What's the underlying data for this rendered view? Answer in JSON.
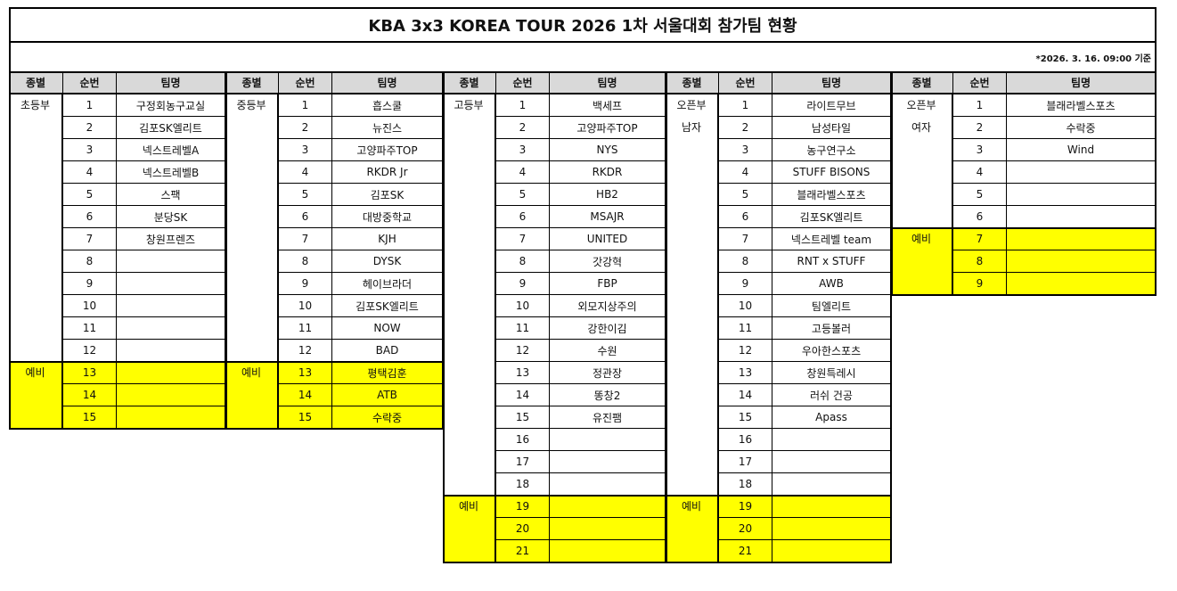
{
  "title": "KBA 3x3 KOREA TOUR 2026 1차 서울대회 참가팀 현황",
  "as_of": "*2026. 3. 16. 09:00 기준",
  "headers": {
    "division": "종별",
    "number": "순번",
    "team": "팀명"
  },
  "reserve_color": "#ffff00",
  "header_color": "#d9d9d9",
  "groups": [
    {
      "division": [
        "초등부"
      ],
      "reserve_label": "예비",
      "teams": [
        {
          "no": "1",
          "team": "구정회농구교실"
        },
        {
          "no": "2",
          "team": "김포SK엘리트"
        },
        {
          "no": "3",
          "team": "넥스트레벨A"
        },
        {
          "no": "4",
          "team": "넥스트레벨B"
        },
        {
          "no": "5",
          "team": "스팩"
        },
        {
          "no": "6",
          "team": "분당SK"
        },
        {
          "no": "7",
          "team": "창원프렌즈"
        },
        {
          "no": "8",
          "team": ""
        },
        {
          "no": "9",
          "team": ""
        },
        {
          "no": "10",
          "team": ""
        },
        {
          "no": "11",
          "team": ""
        },
        {
          "no": "12",
          "team": ""
        }
      ],
      "reserves": [
        {
          "no": "13",
          "team": ""
        },
        {
          "no": "14",
          "team": ""
        },
        {
          "no": "15",
          "team": ""
        }
      ]
    },
    {
      "division": [
        "중등부"
      ],
      "reserve_label": "예비",
      "teams": [
        {
          "no": "1",
          "team": "흡스쿨"
        },
        {
          "no": "2",
          "team": "뉴진스"
        },
        {
          "no": "3",
          "team": "고양파주TOP"
        },
        {
          "no": "4",
          "team": "RKDR Jr"
        },
        {
          "no": "5",
          "team": "김포SK"
        },
        {
          "no": "6",
          "team": "대방중학교"
        },
        {
          "no": "7",
          "team": "KJH"
        },
        {
          "no": "8",
          "team": "DYSK"
        },
        {
          "no": "9",
          "team": "헤이브라더"
        },
        {
          "no": "10",
          "team": "김포SK엘리트"
        },
        {
          "no": "11",
          "team": "NOW"
        },
        {
          "no": "12",
          "team": "BAD"
        }
      ],
      "reserves": [
        {
          "no": "13",
          "team": "평택김훈"
        },
        {
          "no": "14",
          "team": "ATB"
        },
        {
          "no": "15",
          "team": "수락중"
        }
      ]
    },
    {
      "division": [
        "고등부"
      ],
      "reserve_label": "예비",
      "teams": [
        {
          "no": "1",
          "team": "백세프"
        },
        {
          "no": "2",
          "team": "고양파주TOP"
        },
        {
          "no": "3",
          "team": "NYS"
        },
        {
          "no": "4",
          "team": "RKDR"
        },
        {
          "no": "5",
          "team": "HB2"
        },
        {
          "no": "6",
          "team": "MSAJR"
        },
        {
          "no": "7",
          "team": "UNITED"
        },
        {
          "no": "8",
          "team": "갓강혁"
        },
        {
          "no": "9",
          "team": "FBP"
        },
        {
          "no": "10",
          "team": "외모지상주의"
        },
        {
          "no": "11",
          "team": "강한이김"
        },
        {
          "no": "12",
          "team": "수원"
        },
        {
          "no": "13",
          "team": "정관장"
        },
        {
          "no": "14",
          "team": "똥창2"
        },
        {
          "no": "15",
          "team": "유진팸"
        },
        {
          "no": "16",
          "team": ""
        },
        {
          "no": "17",
          "team": ""
        },
        {
          "no": "18",
          "team": ""
        }
      ],
      "reserves": [
        {
          "no": "19",
          "team": ""
        },
        {
          "no": "20",
          "team": ""
        },
        {
          "no": "21",
          "team": ""
        }
      ]
    },
    {
      "division": [
        "오픈부",
        "남자"
      ],
      "reserve_label": "예비",
      "teams": [
        {
          "no": "1",
          "team": "라이트무브"
        },
        {
          "no": "2",
          "team": "남성타일"
        },
        {
          "no": "3",
          "team": "농구연구소"
        },
        {
          "no": "4",
          "team": "STUFF BISONS"
        },
        {
          "no": "5",
          "team": "블래라벨스포츠"
        },
        {
          "no": "6",
          "team": "김포SK엘리트"
        },
        {
          "no": "7",
          "team": "넥스트레벨 team"
        },
        {
          "no": "8",
          "team": "RNT x STUFF"
        },
        {
          "no": "9",
          "team": "AWB"
        },
        {
          "no": "10",
          "team": "팀엘리트"
        },
        {
          "no": "11",
          "team": "고등볼러"
        },
        {
          "no": "12",
          "team": "우아한스포츠"
        },
        {
          "no": "13",
          "team": "창원특레시"
        },
        {
          "no": "14",
          "team": "러쉬 건공"
        },
        {
          "no": "15",
          "team": "Apass"
        },
        {
          "no": "16",
          "team": ""
        },
        {
          "no": "17",
          "team": ""
        },
        {
          "no": "18",
          "team": ""
        }
      ],
      "reserves": [
        {
          "no": "19",
          "team": ""
        },
        {
          "no": "20",
          "team": ""
        },
        {
          "no": "21",
          "team": ""
        }
      ]
    },
    {
      "division": [
        "오픈부",
        "여자"
      ],
      "reserve_label": "예비",
      "teams": [
        {
          "no": "1",
          "team": "블래라벨스포츠"
        },
        {
          "no": "2",
          "team": "수락중"
        },
        {
          "no": "3",
          "team": "Wind"
        },
        {
          "no": "4",
          "team": ""
        },
        {
          "no": "5",
          "team": ""
        },
        {
          "no": "6",
          "team": ""
        }
      ],
      "reserves": [
        {
          "no": "7",
          "team": ""
        },
        {
          "no": "8",
          "team": ""
        },
        {
          "no": "9",
          "team": ""
        }
      ]
    }
  ]
}
